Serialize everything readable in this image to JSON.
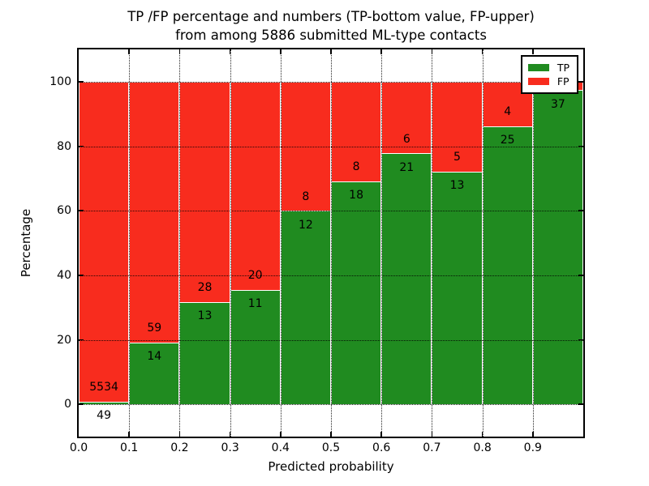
{
  "title": {
    "line1": "TP /FP percentage and numbers (TP-bottom value, FP-upper)",
    "line2": "from among 5886 submitted ML-type contacts"
  },
  "axis": {
    "xlabel": "Predicted probability",
    "ylabel": "Percentage"
  },
  "legend": {
    "items": [
      {
        "label": "TP",
        "color": "#208b20"
      },
      {
        "label": "FP",
        "color": "#f82c1e"
      }
    ]
  },
  "colors": {
    "tp_green": "#208b20",
    "fp_red": "#f82c1e",
    "bar_edge": "#ffffff",
    "grid": "#000000",
    "background": "#ffffff"
  },
  "chart_data": {
    "type": "bar",
    "stacked": true,
    "normalized": "each bar stack scaled to 100%",
    "title": "TP /FP percentage and numbers (TP-bottom value, FP-upper) from among 5886 submitted ML-type contacts",
    "xlabel": "Predicted probability",
    "ylabel": "Percentage",
    "xlim": [
      0.0,
      1.0
    ],
    "ylim": [
      -10,
      110
    ],
    "grid": true,
    "legend_position": "upper right",
    "x_tick_labels": [
      "0.0",
      "0.1",
      "0.2",
      "0.3",
      "0.4",
      "0.5",
      "0.6",
      "0.7",
      "0.8",
      "0.9"
    ],
    "y_ticks": [
      0,
      20,
      40,
      60,
      80,
      100
    ],
    "y_tick_labels": [
      "0",
      "20",
      "40",
      "60",
      "80",
      "100"
    ],
    "bins": [
      [
        0.0,
        0.1
      ],
      [
        0.1,
        0.2
      ],
      [
        0.2,
        0.3
      ],
      [
        0.3,
        0.4
      ],
      [
        0.4,
        0.5
      ],
      [
        0.5,
        0.6
      ],
      [
        0.6,
        0.7
      ],
      [
        0.7,
        0.8
      ],
      [
        0.8,
        0.9
      ],
      [
        0.9,
        1.0
      ]
    ],
    "series": [
      {
        "name": "TP",
        "color": "#208b20",
        "counts": [
          49,
          14,
          13,
          11,
          12,
          18,
          21,
          13,
          25,
          37
        ]
      },
      {
        "name": "FP",
        "color": "#f82c1e",
        "counts": [
          5534,
          59,
          28,
          20,
          8,
          8,
          6,
          5,
          4,
          null
        ]
      }
    ],
    "tp_percent": [
      0.9,
      19.2,
      31.7,
      35.5,
      60.0,
      69.2,
      77.8,
      72.2,
      86.2,
      97.4
    ],
    "tp_labels": [
      "49",
      "14",
      "13",
      "11",
      "12",
      "18",
      "21",
      "13",
      "25",
      "37"
    ],
    "fp_labels": [
      "5534",
      "59",
      "28",
      "20",
      "8",
      "8",
      "6",
      "5",
      "4",
      ""
    ]
  }
}
